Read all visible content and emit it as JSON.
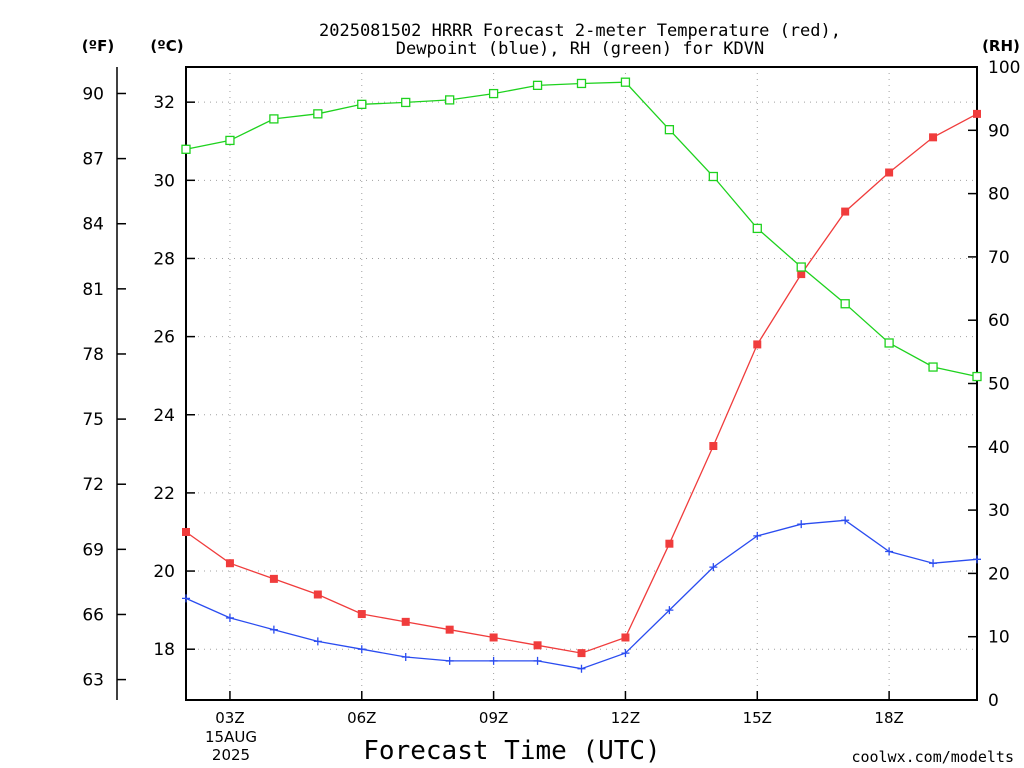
{
  "title": {
    "line1": "2025081502 HRRR Forecast 2-meter Temperature (red),",
    "line2": "Dewpoint (blue), RH (green) for KDVN"
  },
  "axis_units": {
    "fahrenheit": "(ºF)",
    "celsius": "(ºC)",
    "rh": "(RH)"
  },
  "xlabel": "Forecast Time (UTC)",
  "date_label": {
    "day": "15AUG",
    "year": "2025"
  },
  "credit": "coolwx.com/modelts",
  "colors": {
    "temperature": "#f03c3c",
    "dewpoint": "#2a4cf0",
    "rh": "#1ed21e",
    "grid": "#a0a0a0",
    "credit": "#e03030"
  },
  "chart_data": {
    "type": "line",
    "x": [
      "02Z",
      "03Z",
      "04Z",
      "05Z",
      "06Z",
      "07Z",
      "08Z",
      "09Z",
      "10Z",
      "11Z",
      "12Z",
      "13Z",
      "14Z",
      "15Z",
      "16Z",
      "17Z",
      "18Z",
      "19Z",
      "20Z"
    ],
    "x_tick_labels": [
      {
        "x": "03Z",
        "label": "03Z"
      },
      {
        "x": "06Z",
        "label": "06Z"
      },
      {
        "x": "09Z",
        "label": "09Z"
      },
      {
        "x": "12Z",
        "label": "12Z"
      },
      {
        "x": "15Z",
        "label": "15Z"
      },
      {
        "x": "18Z",
        "label": "18Z"
      }
    ],
    "y_celsius": {
      "range": [
        16.7,
        32.9
      ],
      "ticks": [
        "18",
        "20",
        "22",
        "24",
        "26",
        "28",
        "30",
        "32"
      ]
    },
    "y_fahrenheit": {
      "ticks": [
        "63",
        "66",
        "69",
        "72",
        "75",
        "78",
        "81",
        "84",
        "87",
        "90"
      ]
    },
    "y_rh": {
      "range": [
        0,
        100
      ],
      "ticks": [
        "0",
        "10",
        "20",
        "30",
        "40",
        "50",
        "60",
        "70",
        "80",
        "90",
        "100"
      ]
    },
    "grid": true,
    "series": [
      {
        "name": "Temperature",
        "axis": "celsius",
        "marker": "filled-square",
        "values": [
          21.0,
          20.2,
          19.8,
          19.4,
          18.9,
          18.7,
          18.5,
          18.3,
          18.1,
          17.9,
          18.3,
          20.7,
          23.2,
          25.8,
          27.6,
          29.2,
          30.2,
          31.1,
          31.7
        ]
      },
      {
        "name": "Dewpoint",
        "axis": "celsius",
        "marker": "plus",
        "values": [
          19.3,
          18.8,
          18.5,
          18.2,
          18.0,
          17.8,
          17.7,
          17.7,
          17.7,
          17.5,
          17.9,
          19.0,
          20.1,
          20.9,
          21.2,
          21.3,
          20.5,
          20.2,
          20.3
        ]
      },
      {
        "name": "RH",
        "axis": "rh",
        "marker": "open-square",
        "values": [
          87,
          88.4,
          91.8,
          92.6,
          94.1,
          94.4,
          94.8,
          95.8,
          97.1,
          97.4,
          97.6,
          90.1,
          82.7,
          74.5,
          68.4,
          62.6,
          56.4,
          52.6,
          51.1
        ]
      }
    ]
  }
}
